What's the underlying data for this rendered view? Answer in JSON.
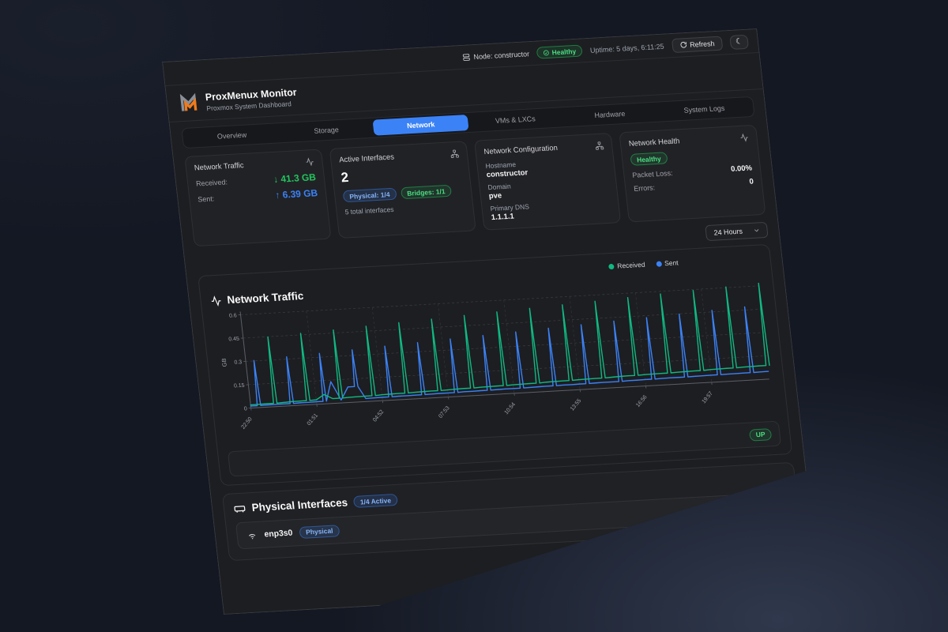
{
  "colors": {
    "accent_blue": "#3b82f6",
    "accent_green": "#22c55e",
    "received_line": "#10b981",
    "sent_line": "#3b82f6",
    "panel_bg": "#1d1e21",
    "card_bg": "#212226",
    "page_bg": "#141823"
  },
  "icons": {
    "moon": "☾"
  },
  "status_bar": {
    "node_label": "Node: constructor",
    "health_badge": "Healthy",
    "uptime": "Uptime: 5 days, 6:11:25",
    "refresh_label": "Refresh"
  },
  "brand": {
    "title": "ProxMenux Monitor",
    "subtitle": "Proxmox System Dashboard"
  },
  "tabs": [
    {
      "label": "Overview",
      "active": false
    },
    {
      "label": "Storage",
      "active": false
    },
    {
      "label": "Network",
      "active": true
    },
    {
      "label": "VMs & LXCs",
      "active": false
    },
    {
      "label": "Hardware",
      "active": false
    },
    {
      "label": "System Logs",
      "active": false
    }
  ],
  "cards": {
    "traffic": {
      "title": "Network Traffic",
      "rows": [
        {
          "label": "Received:",
          "value": "↓ 41.3 GB",
          "color": "green"
        },
        {
          "label": "Sent:",
          "value": "↑ 6.39 GB",
          "color": "blue"
        }
      ]
    },
    "interfaces": {
      "title": "Active Interfaces",
      "count": "2",
      "badges": [
        {
          "label": "Physical: 1/4",
          "color": "blue"
        },
        {
          "label": "Bridges: 1/1",
          "color": "green"
        }
      ],
      "note": "5 total interfaces"
    },
    "config": {
      "title": "Network Configuration",
      "fields": [
        {
          "label": "Hostname",
          "value": "constructor"
        },
        {
          "label": "Domain",
          "value": "pve"
        },
        {
          "label": "Primary DNS",
          "value": "1.1.1.1"
        }
      ]
    },
    "health": {
      "title": "Network Health",
      "status": "Healthy",
      "rows": [
        {
          "label": "Packet Loss:",
          "value": "0.00%"
        },
        {
          "label": "Errors:",
          "value": "0"
        }
      ]
    }
  },
  "range_select": {
    "value": "24 Hours"
  },
  "chart_data": {
    "type": "line",
    "title": "Network Traffic",
    "ylabel": "GB",
    "ylim": [
      0,
      0.6
    ],
    "y_ticks": [
      0,
      0.15,
      0.3,
      0.45,
      0.6
    ],
    "y_tick_labels": [
      "0",
      "0.15",
      "0.3",
      "0.45",
      "0.6"
    ],
    "x_tick_labels": [
      "22:50",
      "01:51",
      "04:52",
      "07:53",
      "10:54",
      "13:55",
      "16:56",
      "19:57"
    ],
    "x_tick_indices": [
      0,
      8,
      16,
      24,
      32,
      40,
      48,
      56
    ],
    "grid": "dashed",
    "legend_position": "top-right",
    "series": [
      {
        "name": "Received",
        "color": "#10b981",
        "values": [
          0.02,
          0.021,
          0.022,
          0.448,
          0.024,
          0.026,
          0.027,
          0.46,
          0.029,
          0.06,
          0.031,
          0.47,
          0.033,
          0.034,
          0.035,
          0.482,
          0.038,
          0.039,
          0.04,
          0.493,
          0.042,
          0.043,
          0.044,
          0.504,
          0.046,
          0.048,
          0.049,
          0.516,
          0.051,
          0.052,
          0.053,
          0.527,
          0.055,
          0.056,
          0.057,
          0.538,
          0.06,
          0.061,
          0.062,
          0.549,
          0.064,
          0.065,
          0.066,
          0.56,
          0.068,
          0.07,
          0.071,
          0.572,
          0.073,
          0.074,
          0.075,
          0.583,
          0.077,
          0.078,
          0.079,
          0.594,
          0.082,
          0.083,
          0.084,
          0.605,
          0.086,
          0.087,
          0.088,
          0.617
        ]
      },
      {
        "name": "Sent",
        "color": "#3b82f6",
        "values": [
          0.012,
          0.303,
          0.013,
          0.014,
          0.014,
          0.314,
          0.016,
          0.016,
          0.017,
          0.325,
          0.14,
          0.019,
          0.1,
          0.336,
          0.02,
          0.021,
          0.022,
          0.348,
          0.023,
          0.023,
          0.024,
          0.359,
          0.025,
          0.026,
          0.026,
          0.37,
          0.028,
          0.028,
          0.029,
          0.381,
          0.03,
          0.031,
          0.031,
          0.392,
          0.032,
          0.033,
          0.034,
          0.404,
          0.035,
          0.035,
          0.036,
          0.415,
          0.037,
          0.038,
          0.038,
          0.426,
          0.04,
          0.04,
          0.041,
          0.437,
          0.042,
          0.043,
          0.043,
          0.448,
          0.044,
          0.045,
          0.046,
          0.46,
          0.047,
          0.047,
          0.048,
          0.471,
          0.049,
          0.05
        ]
      }
    ]
  },
  "bridge_row": {
    "status": "UP"
  },
  "physical_section": {
    "title": "Physical Interfaces",
    "badge": "1/4 Active",
    "rows": [
      {
        "name": "enp3s0",
        "badge": "Physical"
      }
    ]
  }
}
